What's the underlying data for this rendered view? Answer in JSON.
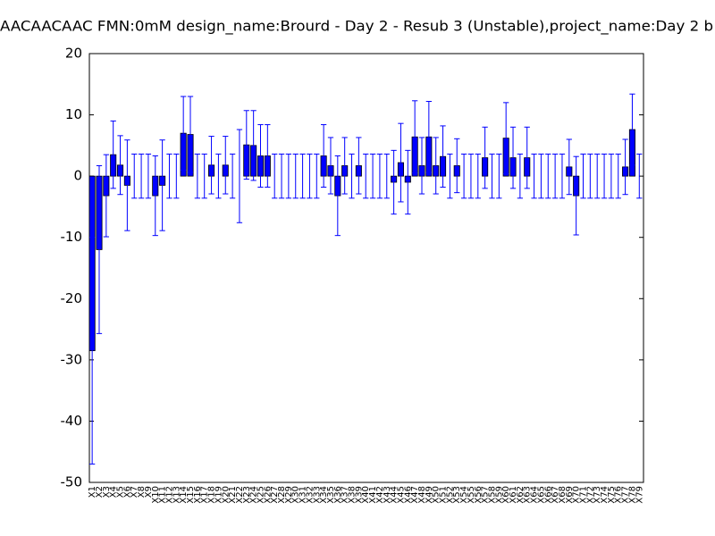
{
  "chart_data": {
    "type": "bar",
    "title": "AACAACAAC  FMN:0mM  design_name:Brourd - Day 2 - Resub 3 (Unstable),project_name:Day 2 b",
    "categories": [
      "X1",
      "X2",
      "X3",
      "X4",
      "X5",
      "X6",
      "X7",
      "X8",
      "X9",
      "X10",
      "X11",
      "X12",
      "X13",
      "X14",
      "X15",
      "X16",
      "X17",
      "X18",
      "X19",
      "X20",
      "X21",
      "X22",
      "X23",
      "X24",
      "X25",
      "X26",
      "X27",
      "X28",
      "X29",
      "X30",
      "X31",
      "X32",
      "X33",
      "X34",
      "X35",
      "X36",
      "X37",
      "X38",
      "X39",
      "X40",
      "X41",
      "X42",
      "X43",
      "X44",
      "X45",
      "X46",
      "X47",
      "X48",
      "X49",
      "X50",
      "X51",
      "X52",
      "X53",
      "X54",
      "X55",
      "X56",
      "X57",
      "X58",
      "X59",
      "X60",
      "X61",
      "X62",
      "X63",
      "X64",
      "X65",
      "X66",
      "X67",
      "X68",
      "X69",
      "X70",
      "X71",
      "X72",
      "X73",
      "X74",
      "X75",
      "X76",
      "X77",
      "X78",
      "X79"
    ],
    "values": [
      -28.5,
      -12,
      -3.2,
      3.5,
      1.8,
      -1.5,
      0,
      0,
      0,
      -3.2,
      -1.5,
      0,
      0,
      7,
      6.8,
      0,
      0,
      1.8,
      0,
      1.8,
      0,
      0,
      5.1,
      5,
      3.3,
      3.3,
      0,
      0,
      0,
      0,
      0,
      0,
      0,
      3.3,
      1.7,
      -3.2,
      1.7,
      0,
      1.7,
      0,
      0,
      0,
      0,
      -1,
      2.2,
      -1,
      6.4,
      1.7,
      6.4,
      1.7,
      3.2,
      0,
      1.7,
      0,
      0,
      0,
      3,
      0,
      0,
      6.2,
      3,
      0,
      3,
      0,
      0,
      0,
      0,
      0,
      1.5,
      -3.2,
      0,
      0,
      0,
      0,
      0,
      0,
      1.5,
      7.6,
      0
    ],
    "errors": [
      18.5,
      13.7,
      6.7,
      5.5,
      4.8,
      7.4,
      3.6,
      3.6,
      3.6,
      6.5,
      7.4,
      3.6,
      3.6,
      6,
      6.2,
      3.6,
      3.6,
      4.7,
      3.6,
      4.7,
      3.6,
      7.6,
      5.6,
      5.7,
      5.1,
      5.1,
      3.6,
      3.6,
      3.6,
      3.6,
      3.6,
      3.6,
      3.6,
      5.1,
      4.6,
      6.5,
      4.6,
      3.6,
      4.6,
      3.6,
      3.6,
      3.6,
      3.6,
      5.2,
      6.4,
      5.2,
      5.9,
      4.6,
      5.8,
      4.6,
      5,
      3.6,
      4.4,
      3.6,
      3.6,
      3.6,
      5,
      3.6,
      3.6,
      5.8,
      5,
      3.6,
      5,
      3.6,
      3.6,
      3.6,
      3.6,
      3.6,
      4.5,
      6.4,
      3.6,
      3.6,
      3.6,
      3.6,
      3.6,
      3.6,
      4.5,
      5.8,
      3.6
    ],
    "color": "#0000ff",
    "error_color": "#0000ff",
    "ylim": [
      -50,
      20
    ],
    "yticks": [
      -50,
      -40,
      -30,
      -20,
      -10,
      0,
      10,
      20
    ],
    "grid": false
  }
}
